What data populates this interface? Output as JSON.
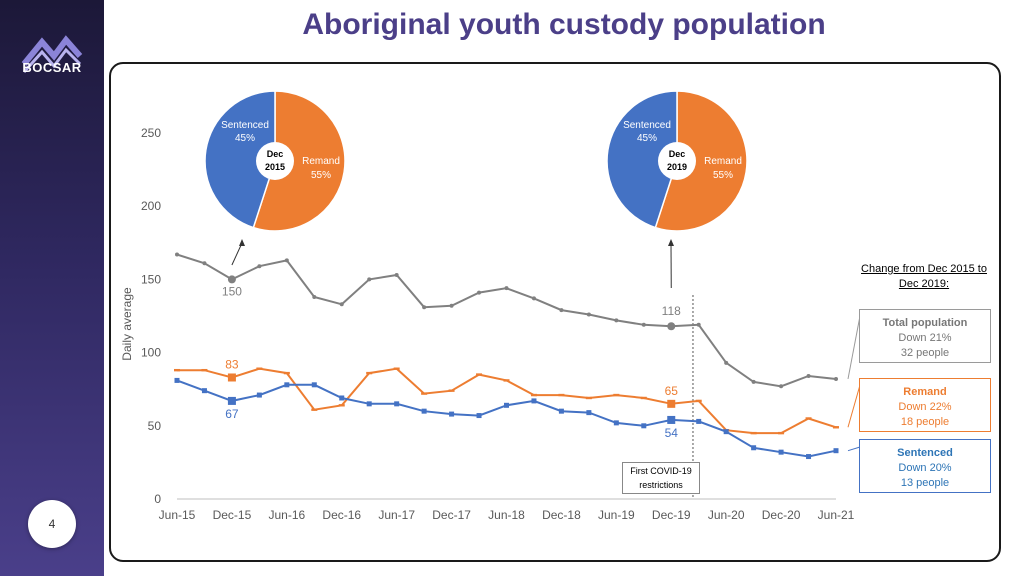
{
  "brand": "BOCSAR",
  "page_number": "4",
  "title": "Aboriginal youth custody population",
  "change_heading": "Change from Dec 2015 to Dec 2019:",
  "covid_note": "First COVID-19 restrictions",
  "callouts": {
    "total": {
      "title": "Total population",
      "line1": "Down 21%",
      "line2": "32 people",
      "color": "#808080",
      "title_color": "#777777"
    },
    "remand": {
      "title": "Remand",
      "line1": "Down 22%",
      "line2": "18 people",
      "color": "#ed7d31",
      "title_color": "#ed7d31"
    },
    "sentenced": {
      "title": "Sentenced",
      "line1": "Down 20%",
      "line2": "13 people",
      "color": "#4472c4",
      "title_color": "#2e75b6"
    }
  },
  "pies": [
    {
      "center_line1": "Dec",
      "center_line2": "2015",
      "sentenced_label": "Sentenced",
      "sentenced_pct": "45%",
      "remand_label": "Remand",
      "remand_pct": "55%",
      "sentenced_value": 45,
      "remand_value": 55
    },
    {
      "center_line1": "Dec",
      "center_line2": "2019",
      "sentenced_label": "Sentenced",
      "sentenced_pct": "45%",
      "remand_label": "Remand",
      "remand_pct": "55%",
      "sentenced_value": 45,
      "remand_value": 55
    }
  ],
  "chart_data": {
    "type": "line",
    "ylabel": "Daily average",
    "ylim": [
      0,
      250
    ],
    "yticks": [
      0,
      50,
      100,
      150,
      200,
      250
    ],
    "x": [
      "Jun-15",
      "Sep-15",
      "Dec-15",
      "Mar-16",
      "Jun-16",
      "Sep-16",
      "Dec-16",
      "Mar-17",
      "Jun-17",
      "Sep-17",
      "Dec-17",
      "Mar-18",
      "Jun-18",
      "Sep-18",
      "Dec-18",
      "Mar-19",
      "Jun-19",
      "Sep-19",
      "Dec-19",
      "Mar-20",
      "Jun-20",
      "Sep-20",
      "Dec-20",
      "Mar-21",
      "Jun-21"
    ],
    "xtick_labels": [
      "Jun-15",
      "Dec-15",
      "Jun-16",
      "Dec-16",
      "Jun-17",
      "Dec-17",
      "Jun-18",
      "Dec-18",
      "Jun-19",
      "Dec-19",
      "Jun-20",
      "Dec-20",
      "Jun-21"
    ],
    "series": [
      {
        "key": "total",
        "values": [
          167,
          161,
          150,
          159,
          163,
          138,
          133,
          150,
          153,
          131,
          132,
          141,
          144,
          137,
          129,
          126,
          122,
          119,
          118,
          119,
          93,
          80,
          77,
          84,
          82
        ],
        "color": "#808080"
      },
      {
        "key": "remand",
        "values": [
          88,
          88,
          83,
          89,
          86,
          61,
          64,
          86,
          89,
          72,
          74,
          85,
          81,
          71,
          71,
          69,
          71,
          69,
          65,
          67,
          47,
          45,
          45,
          55,
          49
        ],
        "color": "#ed7d31"
      },
      {
        "key": "sentenced",
        "values": [
          81,
          74,
          67,
          71,
          78,
          78,
          69,
          65,
          65,
          60,
          58,
          57,
          64,
          67,
          60,
          59,
          52,
          50,
          54,
          53,
          46,
          35,
          32,
          29,
          33
        ],
        "color": "#4472c4"
      }
    ],
    "annotations": [
      {
        "series": "total",
        "index": 2,
        "text": "150"
      },
      {
        "series": "total",
        "index": 18,
        "text": "118"
      },
      {
        "series": "remand",
        "index": 2,
        "text": "83"
      },
      {
        "series": "remand",
        "index": 18,
        "text": "65"
      },
      {
        "series": "sentenced",
        "index": 2,
        "text": "67"
      },
      {
        "series": "sentenced",
        "index": 18,
        "text": "54"
      }
    ],
    "covid_marker_x_index": 19
  }
}
